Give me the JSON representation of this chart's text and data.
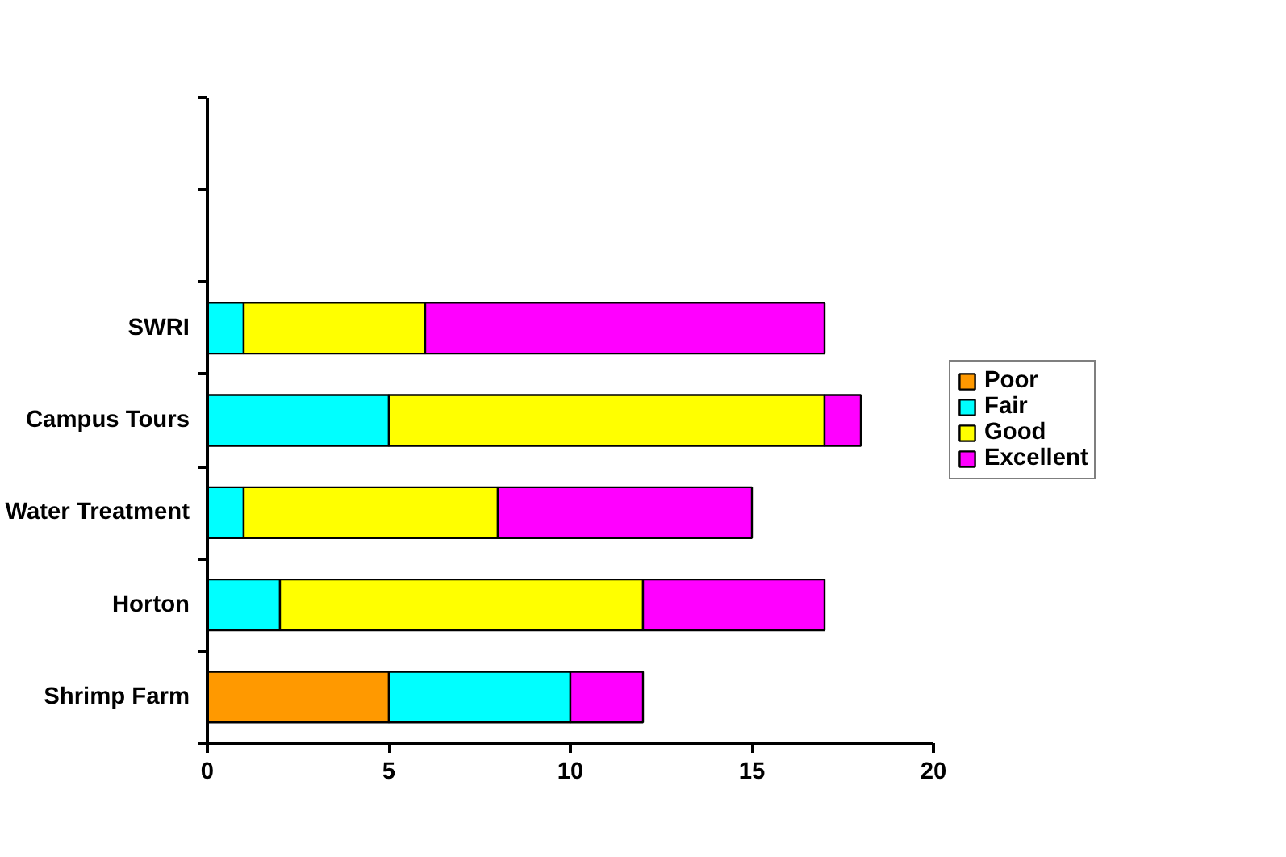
{
  "chart_data": {
    "type": "bar",
    "orientation": "horizontal",
    "stacked": true,
    "categories": [
      null,
      null,
      "SWRI",
      "Campus Tours",
      "Water Treatment",
      "Horton",
      "Shrimp Farm"
    ],
    "series": [
      {
        "name": "Poor",
        "color": "#ff9900",
        "values": [
          null,
          null,
          null,
          null,
          null,
          null,
          5
        ]
      },
      {
        "name": "Fair",
        "color": "#00ffff",
        "values": [
          null,
          null,
          1,
          5,
          1,
          2,
          5
        ]
      },
      {
        "name": "Good",
        "color": "#ffff00",
        "values": [
          null,
          null,
          5,
          12,
          7,
          10,
          null
        ]
      },
      {
        "name": "Excellent",
        "color": "#ff00ff",
        "values": [
          null,
          null,
          11,
          1,
          7,
          5,
          2
        ]
      }
    ],
    "xlim": [
      0,
      20
    ],
    "xticks": [
      0,
      5,
      10,
      15,
      20
    ],
    "grid": false,
    "legend": "right"
  }
}
